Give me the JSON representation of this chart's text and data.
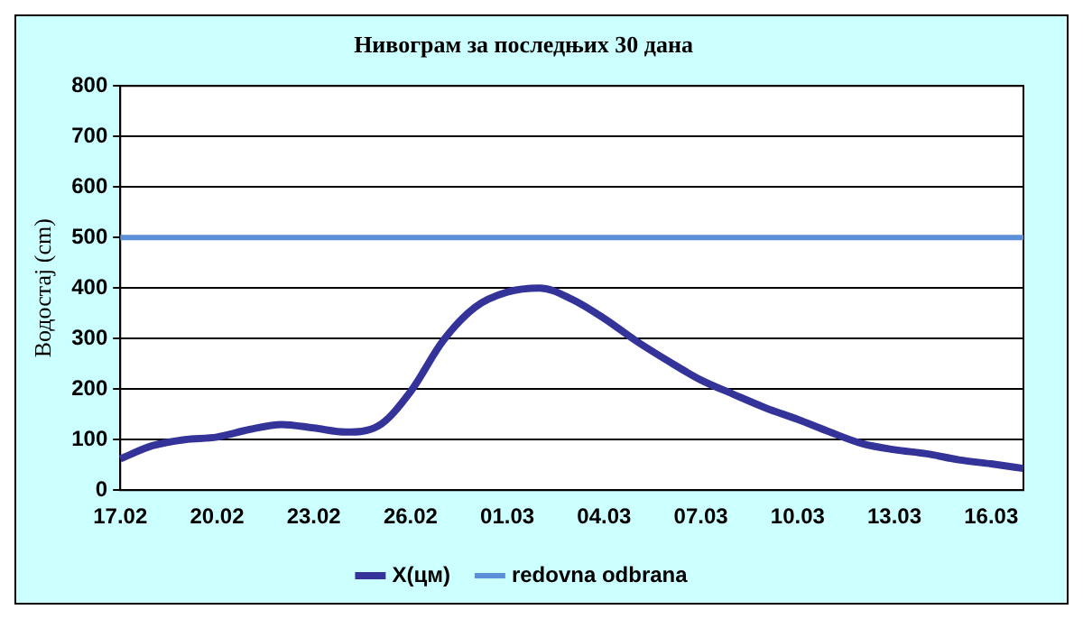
{
  "chart_data": {
    "type": "line",
    "title": "Нивограм за последњих 30 дана",
    "ylabel": "Водостај (cm)",
    "categories": [
      "17.02",
      null,
      null,
      "20.02",
      null,
      null,
      "23.02",
      null,
      null,
      "26.02",
      null,
      null,
      "01.03",
      null,
      null,
      "04.03",
      null,
      null,
      "07.03",
      null,
      null,
      "10.03",
      null,
      null,
      "13.03",
      null,
      null,
      "16.03",
      null
    ],
    "series": [
      {
        "name": "X(цм)",
        "color": "#333399",
        "values": [
          62,
          88,
          100,
          105,
          120,
          130,
          123,
          115,
          127,
          195,
          295,
          362,
          392,
          400,
          378,
          340,
          295,
          255,
          218,
          190,
          163,
          140,
          115,
          92,
          80,
          72,
          60,
          52,
          43
        ]
      }
    ],
    "ref_lines": [
      {
        "axis": "y",
        "value": 500,
        "label": "redovna odbrana",
        "color": "#5b8fd8"
      }
    ],
    "ylim": [
      0,
      800
    ],
    "yticks": [
      0,
      100,
      200,
      300,
      400,
      500,
      600,
      700,
      800
    ],
    "grid": "y",
    "legend": "bottom",
    "marker": "none",
    "line_style": "solid"
  }
}
